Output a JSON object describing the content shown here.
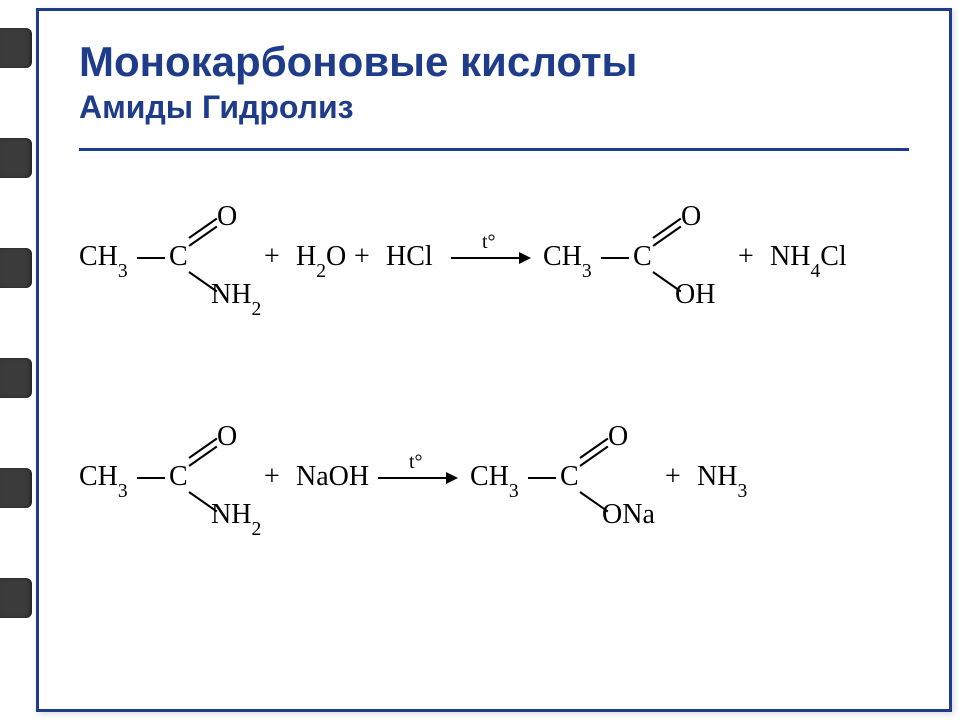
{
  "colors": {
    "border": "#1f3c8a",
    "title": "#1f3c8a",
    "accent": "#1f3c8a",
    "text": "#000000"
  },
  "binder_tabs": {
    "top_start": 28,
    "gap": 110,
    "count": 6
  },
  "title": {
    "main": "Монокарбоновые кислоты",
    "sub": "Амиды  Гидролиз"
  },
  "arrow_label": "t°",
  "reactions": [
    {
      "reactant_struct": {
        "ch3": "CH",
        "ch3_sub": "3",
        "c": "C",
        "o": "O",
        "x": "NH",
        "x_sub": "2"
      },
      "extras": [
        {
          "type": "plus",
          "text": "+"
        },
        {
          "type": "mol",
          "pre": "H",
          "sub": "2",
          "post": "O"
        },
        {
          "type": "plus",
          "text": "+"
        },
        {
          "type": "mol",
          "pre": "HCl",
          "sub": "",
          "post": ""
        }
      ],
      "arrow": true,
      "product_struct": {
        "ch3": "CH",
        "ch3_sub": "3",
        "c": "C",
        "o": "O",
        "x": "OH",
        "x_sub": ""
      },
      "product_extras": [
        {
          "type": "plus",
          "text": "+"
        },
        {
          "type": "mol",
          "pre": "NH",
          "sub": "4",
          "post": "Cl"
        }
      ]
    },
    {
      "reactant_struct": {
        "ch3": "CH",
        "ch3_sub": "3",
        "c": "C",
        "o": "O",
        "x": "NH",
        "x_sub": "2"
      },
      "extras": [
        {
          "type": "plus",
          "text": "+"
        },
        {
          "type": "mol",
          "pre": "NaOH",
          "sub": "",
          "post": ""
        }
      ],
      "arrow": true,
      "product_struct": {
        "ch3": "CH",
        "ch3_sub": "3",
        "c": "C",
        "o": "O",
        "x": "ONa",
        "x_sub": ""
      },
      "product_extras": [
        {
          "type": "plus",
          "text": "+"
        },
        {
          "type": "mol",
          "pre": "NH",
          "sub": "3",
          "post": ""
        }
      ]
    }
  ]
}
